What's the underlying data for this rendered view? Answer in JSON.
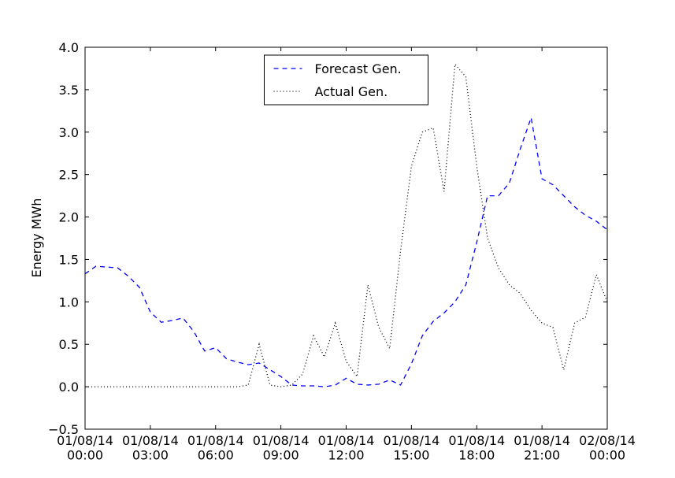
{
  "chart_data": {
    "type": "line",
    "y_label": "Energy MWh",
    "x": [
      0,
      0.5,
      1,
      1.5,
      2,
      2.5,
      3,
      3.5,
      4,
      4.5,
      5,
      5.5,
      6,
      6.5,
      7,
      7.5,
      8,
      8.5,
      9,
      9.5,
      10,
      10.5,
      11,
      11.5,
      12,
      12.5,
      13,
      13.5,
      14,
      14.5,
      15,
      15.5,
      16,
      16.5,
      17,
      17.5,
      18,
      18.5,
      19,
      19.5,
      20,
      20.5,
      21,
      21.5,
      22,
      22.5,
      23,
      23.5,
      24
    ],
    "series": [
      {
        "name": "Forecast Gen.",
        "color": "#0000ff",
        "dash": "6,5",
        "values": [
          1.33,
          1.42,
          1.41,
          1.4,
          1.3,
          1.17,
          0.88,
          0.76,
          0.78,
          0.81,
          0.65,
          0.42,
          0.46,
          0.33,
          0.29,
          0.26,
          0.28,
          0.2,
          0.12,
          0.02,
          0.01,
          0.01,
          0.0,
          0.02,
          0.1,
          0.03,
          0.02,
          0.03,
          0.08,
          0.02,
          0.27,
          0.6,
          0.77,
          0.87,
          1.0,
          1.2,
          1.7,
          2.25,
          2.25,
          2.4,
          2.8,
          3.17,
          2.45,
          2.38,
          2.25,
          2.12,
          2.02,
          1.95,
          1.85
        ]
      },
      {
        "name": "Actual Gen.",
        "color": "#000000",
        "dash": "1,3",
        "values": [
          0,
          0,
          0,
          0,
          0,
          0,
          0,
          0,
          0,
          0,
          0,
          0,
          0,
          0,
          0,
          0.02,
          0.5,
          0.02,
          0.0,
          0.02,
          0.15,
          0.6,
          0.35,
          0.75,
          0.3,
          0.12,
          1.2,
          0.7,
          0.45,
          1.6,
          2.6,
          3.0,
          3.05,
          2.3,
          3.8,
          3.65,
          2.6,
          1.75,
          1.4,
          1.2,
          1.1,
          0.9,
          0.75,
          0.7,
          0.2,
          0.75,
          0.82,
          1.32,
          1.0
        ]
      }
    ],
    "xlim": [
      0,
      24
    ],
    "xticks": [
      {
        "value": 0,
        "label": "01/08/14\n00:00"
      },
      {
        "value": 3,
        "label": "01/08/14\n03:00"
      },
      {
        "value": 6,
        "label": "01/08/14\n06:00"
      },
      {
        "value": 9,
        "label": "01/08/14\n09:00"
      },
      {
        "value": 12,
        "label": "01/08/14\n12:00"
      },
      {
        "value": 15,
        "label": "01/08/14\n15:00"
      },
      {
        "value": 18,
        "label": "01/08/14\n18:00"
      },
      {
        "value": 21,
        "label": "01/08/14\n21:00"
      },
      {
        "value": 24,
        "label": "02/08/14\n00:00"
      }
    ],
    "ylim": [
      -0.5,
      4.0
    ],
    "yticks": [
      {
        "value": -0.5,
        "label": "−0.5"
      },
      {
        "value": 0,
        "label": "0.0"
      },
      0.5,
      {
        "value": 1,
        "label": "1.0"
      },
      1.5,
      {
        "value": 2,
        "label": "2.0"
      },
      2.5,
      {
        "value": 3,
        "label": "3.0"
      },
      3.5,
      {
        "value": 4,
        "label": "4.0"
      }
    ],
    "legend": "upper center"
  }
}
